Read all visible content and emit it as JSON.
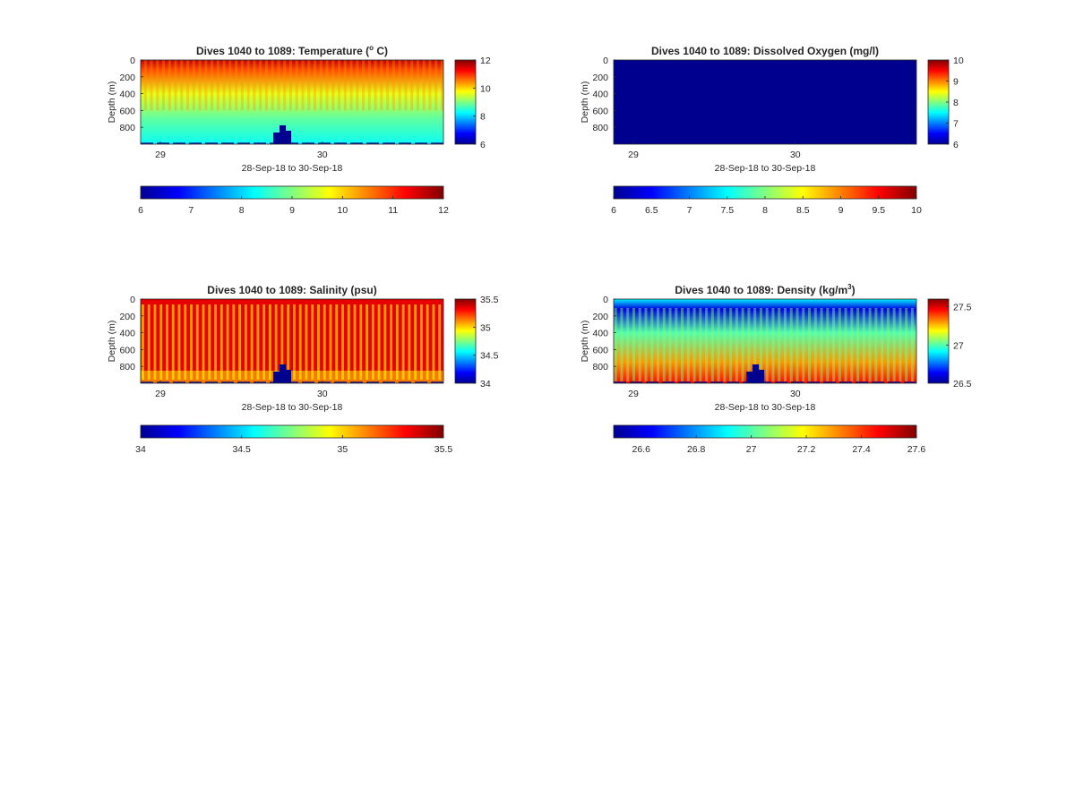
{
  "colormap": [
    "#00008f",
    "#0000ff",
    "#0080ff",
    "#00ffff",
    "#80ff80",
    "#ffff00",
    "#ff8000",
    "#ff0000",
    "#800000"
  ],
  "chart_data": [
    {
      "type": "heatmap",
      "title_text": "Dives 1040 to 1089: Temperature (",
      "title_sup": "o",
      "title_after": " C)",
      "ylabel": "Depth (m)",
      "xlabel": "28-Sep-18 to 30-Sep-18",
      "x_ticks": [
        "29",
        "30"
      ],
      "y_ticks": [
        "0",
        "200",
        "400",
        "600",
        "800"
      ],
      "ylim": [
        0,
        1000
      ],
      "clim": [
        6,
        12
      ],
      "side_colorbar_ticks": [
        "12",
        "10",
        "8",
        "6"
      ],
      "bottom_colorbar_ticks": [
        "6",
        "7",
        "8",
        "9",
        "10",
        "11",
        "12"
      ],
      "n_dives": 50,
      "surface_value": 11.6,
      "deep_value": 8.3,
      "bottom_value": 7.5
    },
    {
      "type": "heatmap",
      "title_text": "Dives 1040 to 1089: Dissolved Oxygen (mg/l)",
      "title_sup": "",
      "title_after": "",
      "ylabel": "Depth (m)",
      "xlabel": "28-Sep-18 to 30-Sep-18",
      "x_ticks": [
        "29",
        "30"
      ],
      "y_ticks": [
        "0",
        "200",
        "400",
        "600",
        "800"
      ],
      "ylim": [
        0,
        1000
      ],
      "clim": [
        6,
        10
      ],
      "side_colorbar_ticks": [
        "10",
        "9",
        "8",
        "7",
        "6"
      ],
      "bottom_colorbar_ticks": [
        "6",
        "6.5",
        "7",
        "7.5",
        "8",
        "8.5",
        "9",
        "9.5",
        "10"
      ],
      "uniform_value": 6
    },
    {
      "type": "heatmap",
      "title_text": "Dives 1040 to 1089: Salinity (psu)",
      "title_sup": "",
      "title_after": "",
      "ylabel": "Depth (m)",
      "xlabel": "28-Sep-18 to 30-Sep-18",
      "x_ticks": [
        "29",
        "30"
      ],
      "y_ticks": [
        "0",
        "200",
        "400",
        "600",
        "800"
      ],
      "ylim": [
        0,
        1000
      ],
      "clim": [
        34,
        35.5
      ],
      "side_colorbar_ticks": [
        "35.5",
        "35",
        "34.5",
        "34"
      ],
      "bottom_colorbar_ticks": [
        "34",
        "34.5",
        "35",
        "35.5"
      ],
      "n_dives": 50,
      "stripe_value": 35.05,
      "background_value": 35.35,
      "bottom_value": 34.95
    },
    {
      "type": "heatmap",
      "title_text": "Dives 1040 to 1089: Density (kg/m",
      "title_sup": "3",
      "title_after": ")",
      "ylabel": "Depth (m)",
      "xlabel": "28-Sep-18 to 30-Sep-18",
      "x_ticks": [
        "29",
        "30"
      ],
      "y_ticks": [
        "0",
        "200",
        "400",
        "600",
        "800"
      ],
      "ylim": [
        0,
        1000
      ],
      "clim": [
        26.5,
        27.6
      ],
      "side_colorbar_ticks": [
        "27.5",
        "27",
        "26.5"
      ],
      "bottom_colorbar_ticks": [
        "26.6",
        "26.8",
        "27",
        "27.2",
        "27.4",
        "27.6"
      ],
      "n_dives": 50,
      "surface_value": 26.6,
      "deep_value": 27.45,
      "stripe_value": 27.05
    }
  ]
}
